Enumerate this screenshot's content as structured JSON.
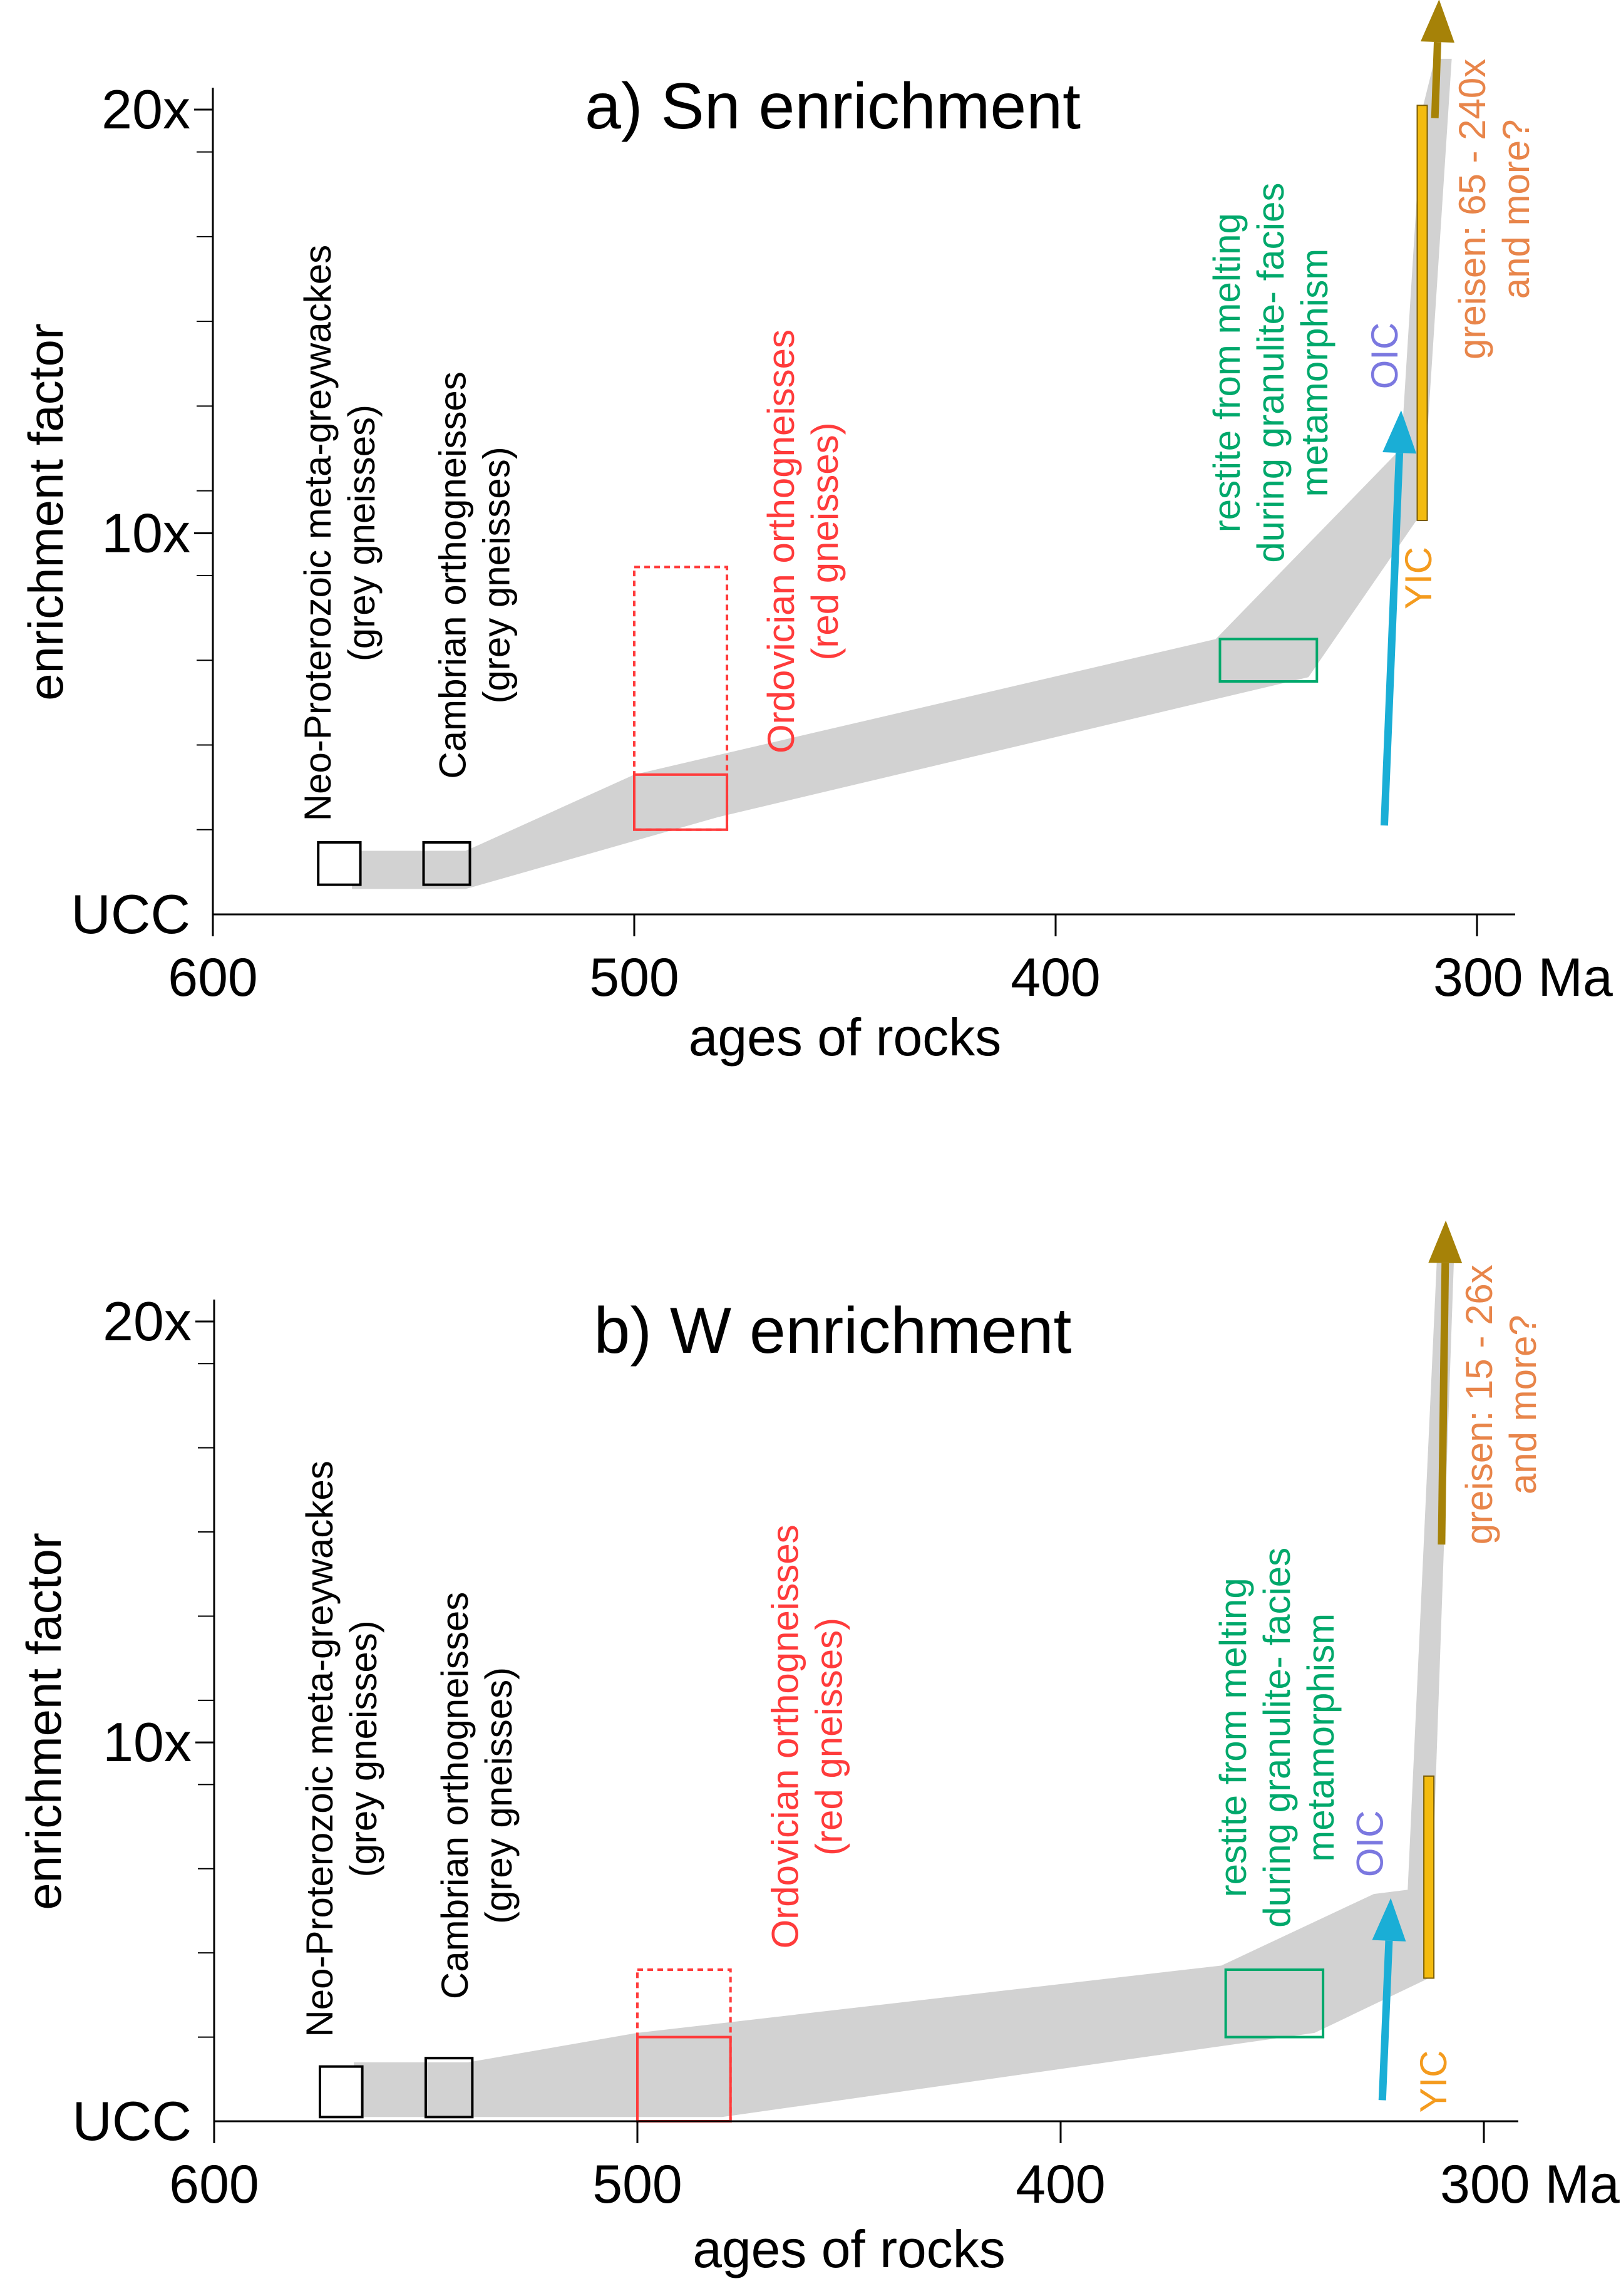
{
  "chart_data": [
    {
      "id": "sn",
      "type": "area",
      "title": "a) Sn enrichment",
      "xlabel": "ages of rocks",
      "ylabel": "enrichment factor",
      "x_reversed": true,
      "xlim": [
        600,
        290
      ],
      "ylim": [
        1,
        21
      ],
      "x_ticks": [
        {
          "value": 600,
          "label": "600"
        },
        {
          "value": 500,
          "label": "500"
        },
        {
          "value": 400,
          "label": "400"
        },
        {
          "value": 300,
          "label": "300 Ma"
        }
      ],
      "y_ticks": [
        {
          "value": 1,
          "label": "UCC"
        },
        {
          "value": 10,
          "label": "10x"
        },
        {
          "value": 20,
          "label": "20x"
        }
      ],
      "y_minor_ticks": [
        3,
        5,
        7,
        9,
        11,
        13,
        15,
        17,
        19
      ],
      "band": {
        "color": "#d2d2d2",
        "upper": [
          [
            567,
            2.5
          ],
          [
            540,
            2.5
          ],
          [
            500,
            4.3
          ],
          [
            362,
            7.5
          ],
          [
            318,
            12
          ],
          [
            313,
            20
          ],
          [
            310,
            21.2
          ]
        ],
        "lower": [
          [
            567,
            1.6
          ],
          [
            540,
            1.6
          ],
          [
            480,
            3.3
          ],
          [
            340,
            6.6
          ],
          [
            313,
            10.5
          ],
          [
            306,
            21.2
          ]
        ]
      },
      "boxes": [
        {
          "name": "neo-proterozoic",
          "age_min": 565,
          "age_max": 575,
          "y_min": 1.7,
          "y_max": 2.7,
          "color": "#000000",
          "fill": "#ffffff",
          "dashed": false
        },
        {
          "name": "cambrian",
          "age_min": 539,
          "age_max": 550,
          "y_min": 1.7,
          "y_max": 2.7,
          "color": "#000000",
          "fill": "none",
          "dashed": false
        },
        {
          "name": "ordovician",
          "age_min": 478,
          "age_max": 500,
          "y_min": 3,
          "y_max": 4.3,
          "color": "#ff3b3b",
          "fill": "none",
          "dashed": false
        },
        {
          "name": "ordovician-range",
          "age_min": 478,
          "age_max": 500,
          "y_min": 3,
          "y_max": 9.2,
          "color": "#ff3b3b",
          "fill": "none",
          "dashed": true
        },
        {
          "name": "restite",
          "age_min": 338,
          "age_max": 361,
          "y_min": 6.5,
          "y_max": 7.5,
          "color": "#00a86b",
          "fill": "none",
          "dashed": false
        }
      ],
      "bars": [
        {
          "name": "yic-bar",
          "age": 313,
          "y_min": 10.3,
          "y_max": 20.1,
          "color": "#f3bb0f"
        }
      ],
      "arrows": [
        {
          "name": "oic-arrow",
          "from": [
            322,
            3.1
          ],
          "to": [
            318,
            12.9
          ],
          "color": "#1aaed6"
        },
        {
          "name": "greisen-arrow",
          "from": [
            310,
            19.8
          ],
          "to": [
            309,
            22.6
          ],
          "color": "#a68208"
        }
      ],
      "labels": [
        {
          "name": "neo-proterozoic-label",
          "lines": [
            "Neo-Proterozoic meta-greywackes",
            "(grey gneisses)"
          ],
          "age": 570,
          "y": 3.2,
          "rotate": -90,
          "anchor": "start",
          "color": "#000000"
        },
        {
          "name": "cambrian-label",
          "lines": [
            "Cambrian orthogneisses",
            "(grey gneisses)"
          ],
          "age": 538,
          "y": 4.2,
          "rotate": -90,
          "anchor": "start",
          "color": "#000000"
        },
        {
          "name": "ordovician-label",
          "lines": [
            "Ordovician orthogneisses",
            "(red gneisses)"
          ],
          "age": 460,
          "y": 4.8,
          "rotate": -90,
          "anchor": "start",
          "color": "#ff3b3b"
        },
        {
          "name": "restite-label",
          "lines": [
            "restite from melting",
            "during granulite- facies",
            "metamorphism"
          ],
          "age": 349,
          "y": 9.3,
          "rotate": -90,
          "anchor": "start",
          "color": "#00a86b"
        },
        {
          "name": "oic-label",
          "lines": [
            "OIC"
          ],
          "age": 322,
          "y": 13.4,
          "rotate": -90,
          "anchor": "start",
          "color": "#7b78e0"
        },
        {
          "name": "yic-label",
          "lines": [
            "YIC"
          ],
          "age": 314,
          "y": 8.2,
          "rotate": -90,
          "anchor": "start",
          "color": "#f49b1e"
        },
        {
          "name": "greisen-label",
          "lines": [
            "greisen: 65 - 240x",
            "and more?"
          ],
          "age": 296,
          "y": 14.1,
          "rotate": -90,
          "anchor": "start",
          "color": "#e8854a"
        }
      ]
    },
    {
      "id": "w",
      "type": "area",
      "title": "b) W enrichment",
      "xlabel": "ages of rocks",
      "ylabel": "enrichment factor",
      "x_reversed": true,
      "xlim": [
        600,
        290
      ],
      "ylim": [
        1,
        21
      ],
      "x_ticks": [
        {
          "value": 600,
          "label": "600"
        },
        {
          "value": 500,
          "label": "500"
        },
        {
          "value": 400,
          "label": "400"
        },
        {
          "value": 300,
          "label": "300 Ma"
        }
      ],
      "y_ticks": [
        {
          "value": 1,
          "label": "UCC"
        },
        {
          "value": 10,
          "label": "10x"
        },
        {
          "value": 20,
          "label": "20x"
        }
      ],
      "y_minor_ticks": [
        3,
        5,
        7,
        9,
        11,
        13,
        15,
        17,
        19
      ],
      "band": {
        "color": "#d2d2d2",
        "upper": [
          [
            567,
            2.4
          ],
          [
            540,
            2.4
          ],
          [
            500,
            3.1
          ],
          [
            362,
            4.7
          ],
          [
            326,
            6.4
          ],
          [
            318,
            6.5
          ],
          [
            311,
            21.7
          ]
        ],
        "lower": [
          [
            567,
            1.1
          ],
          [
            540,
            1.1
          ],
          [
            480,
            1.1
          ],
          [
            340,
            3.1
          ],
          [
            313,
            4.4
          ],
          [
            307,
            21.7
          ]
        ]
      },
      "boxes": [
        {
          "name": "neo-proterozoic",
          "age_min": 565,
          "age_max": 575,
          "y_min": 1.1,
          "y_max": 2.3,
          "color": "#000000",
          "fill": "#ffffff",
          "dashed": false
        },
        {
          "name": "cambrian",
          "age_min": 539,
          "age_max": 550,
          "y_min": 1.1,
          "y_max": 2.5,
          "color": "#000000",
          "fill": "none",
          "dashed": false
        },
        {
          "name": "ordovician",
          "age_min": 478,
          "age_max": 500,
          "y_min": 1,
          "y_max": 3,
          "color": "#ff3b3b",
          "fill": "none",
          "dashed": false
        },
        {
          "name": "ordovician-range",
          "age_min": 478,
          "age_max": 500,
          "y_min": 1,
          "y_max": 4.6,
          "color": "#ff3b3b",
          "fill": "none",
          "dashed": true
        },
        {
          "name": "restite",
          "age_min": 338,
          "age_max": 361,
          "y_min": 3,
          "y_max": 4.6,
          "color": "#00a86b",
          "fill": "none",
          "dashed": false
        }
      ],
      "bars": [
        {
          "name": "yic-bar",
          "age": 313,
          "y_min": 4.4,
          "y_max": 9.2,
          "color": "#f3bb0f"
        }
      ],
      "arrows": [
        {
          "name": "oic-arrow",
          "from": [
            324,
            1.5
          ],
          "to": [
            322,
            6.3
          ],
          "color": "#1aaed6"
        },
        {
          "name": "greisen-arrow",
          "from": [
            310,
            14.7
          ],
          "to": [
            309,
            22.4
          ],
          "color": "#a68208"
        }
      ],
      "labels": [
        {
          "name": "neo-proterozoic-label",
          "lines": [
            "Neo-Proterozoic meta-greywackes",
            "(grey gneisses)"
          ],
          "age": 570,
          "y": 3.0,
          "rotate": -90,
          "anchor": "start",
          "color": "#000000"
        },
        {
          "name": "cambrian-label",
          "lines": [
            "Cambrian orthogneisses",
            "(grey gneisses)"
          ],
          "age": 538,
          "y": 3.9,
          "rotate": -90,
          "anchor": "start",
          "color": "#000000"
        },
        {
          "name": "ordovician-label",
          "lines": [
            "Ordovician orthogneisses",
            "(red gneisses)"
          ],
          "age": 460,
          "y": 5.1,
          "rotate": -90,
          "anchor": "start",
          "color": "#ff3b3b"
        },
        {
          "name": "restite-label",
          "lines": [
            "restite from melting",
            "during granulite- facies",
            "metamorphism"
          ],
          "age": 349,
          "y": 5.6,
          "rotate": -90,
          "anchor": "start",
          "color": "#00a86b"
        },
        {
          "name": "oic-label",
          "lines": [
            "OIC"
          ],
          "age": 327,
          "y": 6.8,
          "rotate": -90,
          "anchor": "start",
          "color": "#7b78e0"
        },
        {
          "name": "yic-label",
          "lines": [
            "YIC"
          ],
          "age": 312,
          "y": 1.2,
          "rotate": -90,
          "anchor": "start",
          "color": "#f49b1e"
        },
        {
          "name": "greisen-label",
          "lines": [
            "greisen: 15 - 26x",
            "and more?"
          ],
          "age": 296,
          "y": 14.7,
          "rotate": -90,
          "anchor": "start",
          "color": "#e8854a"
        }
      ]
    }
  ]
}
